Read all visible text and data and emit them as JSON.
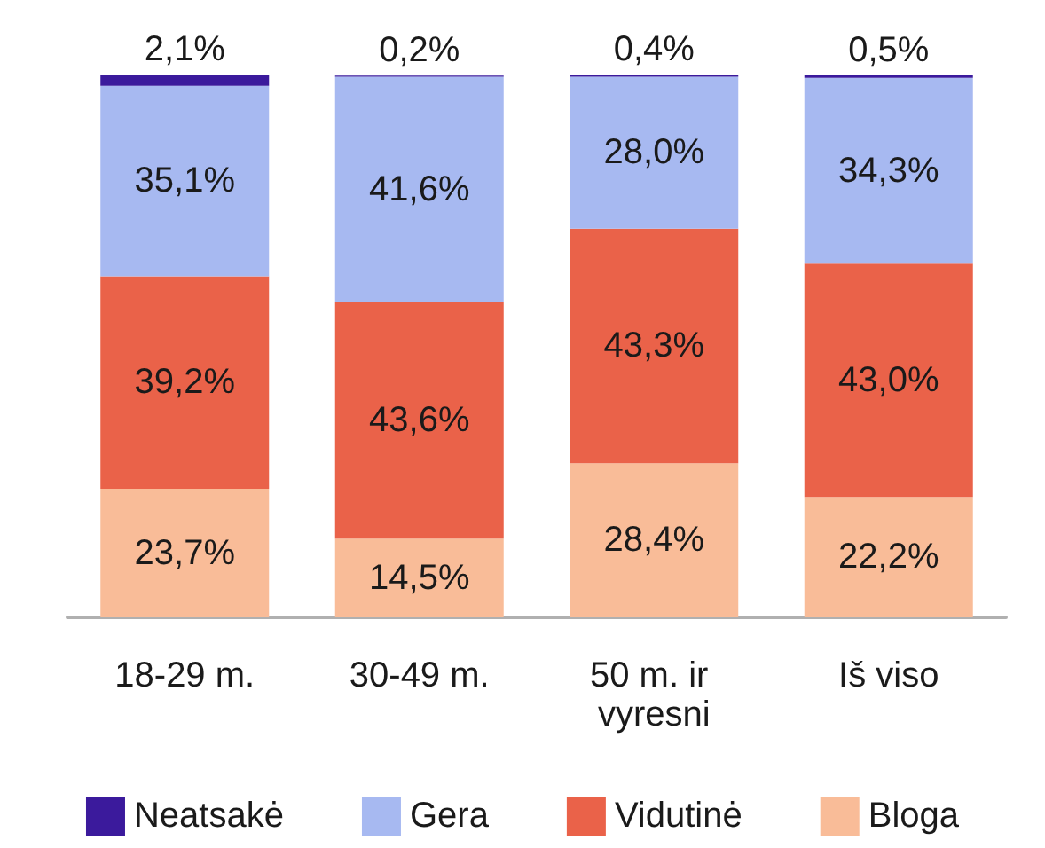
{
  "chart_data": {
    "type": "bar",
    "stacked": true,
    "categories": [
      "18-29 m.",
      "30-49 m.",
      "50 m. ir vyresni",
      "Iš viso"
    ],
    "series": [
      {
        "name": "Bloga",
        "color": "#f9bc98",
        "values": [
          23.7,
          14.5,
          28.4,
          22.2
        ],
        "value_labels": [
          "23,7%",
          "14,5%",
          "28,4%",
          "22,2%"
        ]
      },
      {
        "name": "Vidutinė",
        "color": "#ea6249",
        "values": [
          39.2,
          43.6,
          43.3,
          43.0
        ],
        "value_labels": [
          "39,2%",
          "43,6%",
          "43,3%",
          "43,0%"
        ]
      },
      {
        "name": "Gera",
        "color": "#a7b9f1",
        "values": [
          35.1,
          41.6,
          28.0,
          34.3
        ],
        "value_labels": [
          "35,1%",
          "41,6%",
          "28,0%",
          "34,3%"
        ]
      },
      {
        "name": "Neatsakė",
        "color": "#3b1a9c",
        "values": [
          2.1,
          0.2,
          0.4,
          0.5
        ],
        "value_labels": [
          "2,1%",
          "0,2%",
          "0,4%",
          "0,5%"
        ]
      }
    ],
    "legend": "bottom"
  }
}
